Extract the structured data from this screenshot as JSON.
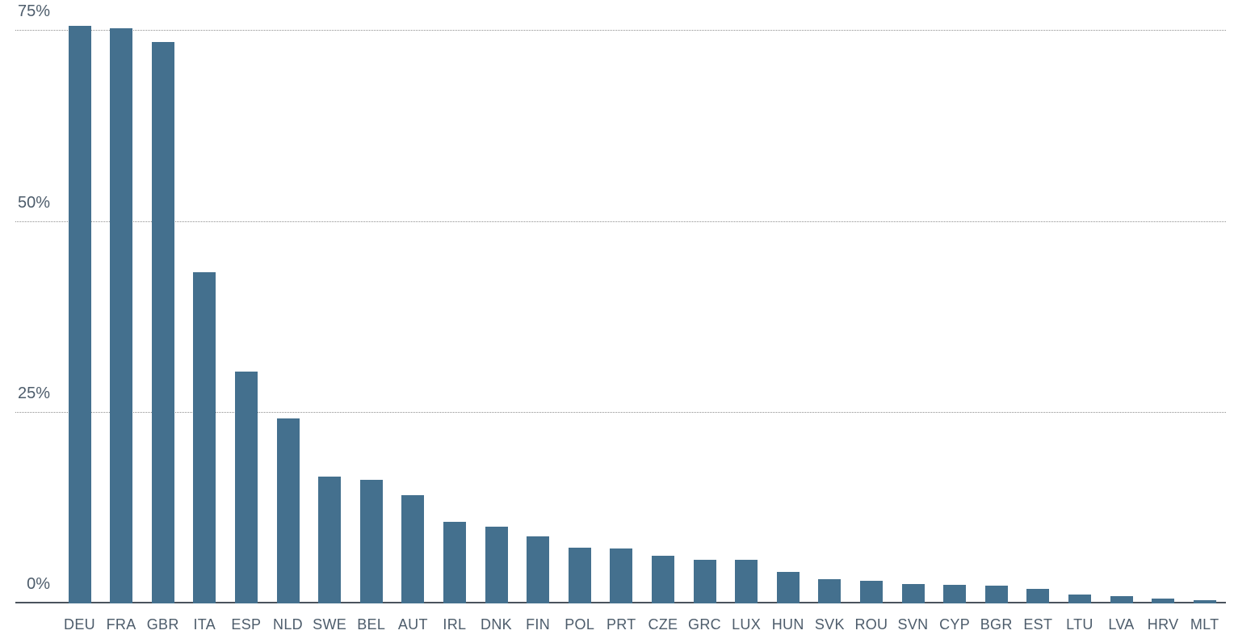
{
  "chart_data": {
    "type": "bar",
    "title": "",
    "xlabel": "",
    "ylabel": "",
    "categories": [
      "DEU",
      "FRA",
      "GBR",
      "ITA",
      "ESP",
      "NLD",
      "SWE",
      "BEL",
      "AUT",
      "IRL",
      "DNK",
      "FIN",
      "POL",
      "PRT",
      "CZE",
      "GRC",
      "LUX",
      "HUN",
      "SVK",
      "ROU",
      "SVN",
      "CYP",
      "BGR",
      "EST",
      "LTU",
      "LVA",
      "HRV",
      "MLT"
    ],
    "values": [
      75.7,
      75.3,
      73.5,
      43.4,
      30.4,
      24.2,
      16.6,
      16.2,
      14.2,
      10.7,
      10.1,
      8.8,
      7.3,
      7.2,
      6.2,
      5.7,
      5.7,
      4.1,
      3.2,
      3.0,
      2.5,
      2.4,
      2.3,
      1.9,
      1.2,
      1.0,
      0.6,
      0.4
    ],
    "unit": "%",
    "y_ticks": [
      0,
      25,
      50,
      75
    ],
    "y_tick_labels": [
      "0%",
      "25%",
      "50%",
      "75%"
    ],
    "ylim": [
      0,
      79
    ],
    "grid": "horizontal-dotted",
    "legend": "none",
    "colors": {
      "bar": "#44708E",
      "axis_line": "#4A535D",
      "gridline": "#8F8F8F",
      "tick_label": "#4D5C6B",
      "background": "#FFFFFF"
    }
  }
}
